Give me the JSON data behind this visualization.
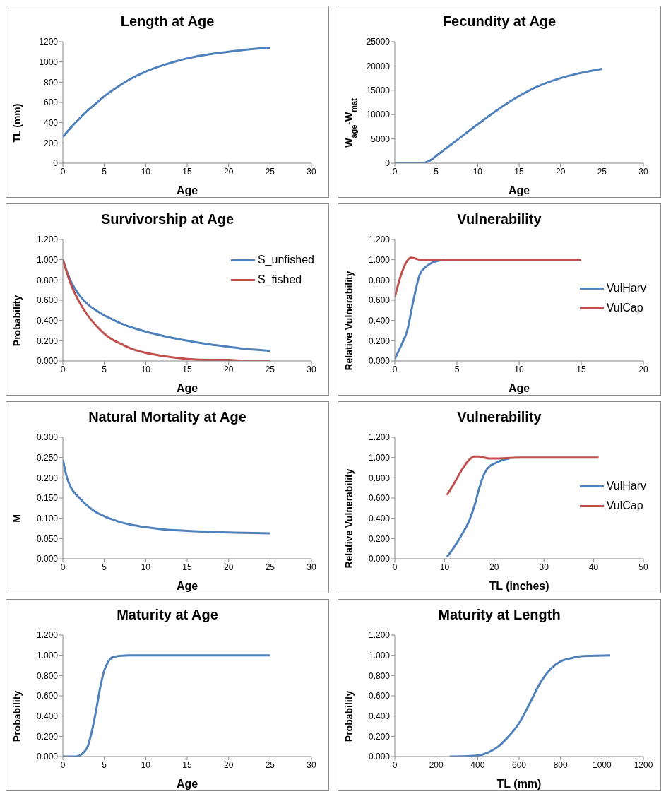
{
  "chart_data": [
    {
      "type": "line",
      "title": "Length at Age",
      "xlabel": "Age",
      "ylabel": "TL (mm)",
      "xlim": [
        0,
        30
      ],
      "xticks": [
        0,
        5,
        10,
        15,
        20,
        25,
        30
      ],
      "ylim": [
        0,
        1200
      ],
      "yticks": [
        0,
        200,
        400,
        600,
        800,
        1000,
        1200
      ],
      "grid": false,
      "legend": false,
      "series": [
        {
          "color": "#4f81bd",
          "x": [
            0,
            1,
            2,
            3,
            4,
            5,
            6,
            7,
            8,
            10,
            12,
            15,
            18,
            20,
            22,
            25
          ],
          "values": [
            260,
            355,
            440,
            520,
            590,
            660,
            720,
            775,
            825,
            905,
            965,
            1035,
            1080,
            1100,
            1120,
            1140
          ]
        }
      ]
    },
    {
      "type": "line",
      "title": "Fecundity at Age",
      "xlabel": "Age",
      "ylabel": "W$_{age}$-W$_{mat}$",
      "xlim": [
        0,
        30
      ],
      "xticks": [
        0,
        5,
        10,
        15,
        20,
        25,
        30
      ],
      "ylim": [
        0,
        25000
      ],
      "yticks": [
        0,
        5000,
        10000,
        15000,
        20000,
        25000
      ],
      "grid": false,
      "legend": false,
      "series": [
        {
          "color": "#4f81bd",
          "x": [
            0,
            3,
            3.8,
            4.3,
            5,
            6,
            7,
            8,
            10,
            12,
            14,
            15,
            17,
            20,
            22,
            25
          ],
          "values": [
            0,
            0,
            200,
            600,
            1500,
            2800,
            4100,
            5400,
            8000,
            10500,
            12800,
            13800,
            15600,
            17500,
            18400,
            19400
          ]
        }
      ]
    },
    {
      "type": "line",
      "title": "Survivorship at Age",
      "xlabel": "Age",
      "ylabel": "Probability",
      "xlim": [
        0,
        30
      ],
      "xticks": [
        0,
        5,
        10,
        15,
        20,
        25,
        30
      ],
      "ylim": [
        0,
        1.2
      ],
      "yticks": [
        {
          "value": 0,
          "label": "0.000"
        },
        {
          "value": 0.2,
          "label": "0.200"
        },
        {
          "value": 0.4,
          "label": "0.400"
        },
        {
          "value": 0.6,
          "label": "0.600"
        },
        {
          "value": 0.8,
          "label": "0.800"
        },
        {
          "value": 1,
          "label": "1.000"
        },
        {
          "value": 1.2,
          "label": "1.200"
        }
      ],
      "grid": false,
      "legend": "top right",
      "series": [
        {
          "name": "S_unfished",
          "color": "#4f81bd",
          "x": [
            0,
            1,
            2,
            3,
            4,
            5,
            6,
            7,
            8,
            10,
            12,
            15,
            18,
            20,
            22,
            25
          ],
          "values": [
            1,
            0.78,
            0.65,
            0.56,
            0.5,
            0.45,
            0.41,
            0.37,
            0.34,
            0.29,
            0.25,
            0.2,
            0.16,
            0.14,
            0.12,
            0.1
          ]
        },
        {
          "name": "S_fished",
          "color": "#c0504d",
          "x": [
            0,
            1,
            2,
            3,
            4,
            5,
            6,
            7,
            8,
            10,
            12,
            15,
            18,
            20,
            22,
            25
          ],
          "values": [
            1,
            0.75,
            0.58,
            0.45,
            0.35,
            0.27,
            0.21,
            0.17,
            0.13,
            0.08,
            0.05,
            0.02,
            0.01,
            0.01,
            0,
            0
          ]
        }
      ]
    },
    {
      "type": "line",
      "title": "Vulnerability",
      "xlabel": "Age",
      "ylabel": "Relative Vulnerability",
      "xlim": [
        0,
        20
      ],
      "xticks": [
        0,
        5,
        10,
        15,
        20
      ],
      "ylim": [
        0,
        1.2
      ],
      "yticks": [
        {
          "value": 0,
          "label": "0.000"
        },
        {
          "value": 0.2,
          "label": "0.200"
        },
        {
          "value": 0.4,
          "label": "0.400"
        },
        {
          "value": 0.6,
          "label": "0.600"
        },
        {
          "value": 0.8,
          "label": "0.800"
        },
        {
          "value": 1,
          "label": "1.000"
        },
        {
          "value": 1.2,
          "label": "1.200"
        }
      ],
      "grid": false,
      "legend": "right",
      "series": [
        {
          "name": "VulHarv",
          "color": "#4f81bd",
          "x": [
            0,
            0.5,
            1,
            1.5,
            2,
            2.5,
            3,
            3.5,
            4
          ],
          "values": [
            0.02,
            0.15,
            0.3,
            0.6,
            0.85,
            0.93,
            0.97,
            0.99,
            1
          ]
        },
        {
          "name": "VulCap",
          "color": "#c0504d",
          "x": [
            0,
            0.5,
            1,
            1.3,
            1.7,
            2,
            3,
            5,
            10,
            15
          ],
          "values": [
            0.63,
            0.85,
            0.99,
            1.02,
            1.01,
            1,
            1,
            1,
            1,
            1
          ]
        }
      ]
    },
    {
      "type": "line",
      "title": "Natural Mortality at Age",
      "xlabel": "Age",
      "ylabel": "M",
      "xlim": [
        0,
        30
      ],
      "xticks": [
        0,
        5,
        10,
        15,
        20,
        25,
        30
      ],
      "ylim": [
        0,
        0.3
      ],
      "yticks": [
        {
          "value": 0,
          "label": "0.000"
        },
        {
          "value": 0.05,
          "label": "0.050"
        },
        {
          "value": 0.1,
          "label": "0.100"
        },
        {
          "value": 0.15,
          "label": "0.150"
        },
        {
          "value": 0.2,
          "label": "0.200"
        },
        {
          "value": 0.25,
          "label": "0.250"
        },
        {
          "value": 0.3,
          "label": "0.300"
        }
      ],
      "grid": false,
      "legend": false,
      "series": [
        {
          "color": "#4f81bd",
          "x": [
            0,
            0.5,
            1,
            2,
            3,
            4,
            5,
            6,
            7,
            8,
            10,
            12,
            15,
            18,
            20,
            22,
            25
          ],
          "values": [
            0.245,
            0.2,
            0.175,
            0.15,
            0.13,
            0.115,
            0.105,
            0.097,
            0.09,
            0.085,
            0.078,
            0.073,
            0.069,
            0.066,
            0.065,
            0.064,
            0.063
          ]
        }
      ]
    },
    {
      "type": "line",
      "title": "Vulnerability",
      "xlabel": "TL (inches)",
      "ylabel": "Relative Vulnerability",
      "xlim": [
        0,
        50
      ],
      "xticks": [
        0,
        10,
        20,
        30,
        40,
        50
      ],
      "ylim": [
        0,
        1.2
      ],
      "yticks": [
        {
          "value": 0,
          "label": "0.000"
        },
        {
          "value": 0.2,
          "label": "0.200"
        },
        {
          "value": 0.4,
          "label": "0.400"
        },
        {
          "value": 0.6,
          "label": "0.600"
        },
        {
          "value": 0.8,
          "label": "0.800"
        },
        {
          "value": 1,
          "label": "1.000"
        },
        {
          "value": 1.2,
          "label": "1.200"
        }
      ],
      "grid": false,
      "legend": "right",
      "series": [
        {
          "name": "VulHarv",
          "color": "#4f81bd",
          "x": [
            10.5,
            12,
            13.5,
            15,
            16,
            17,
            18,
            19,
            20,
            22,
            23
          ],
          "values": [
            0.02,
            0.12,
            0.24,
            0.38,
            0.52,
            0.7,
            0.84,
            0.91,
            0.94,
            0.98,
            0.99
          ]
        },
        {
          "name": "VulCap",
          "color": "#c0504d",
          "x": [
            10.5,
            12,
            13.5,
            15,
            16,
            17,
            18,
            19,
            20,
            25,
            41
          ],
          "values": [
            0.63,
            0.75,
            0.88,
            0.98,
            1.01,
            1.01,
            1,
            0.99,
            0.99,
            1,
            1
          ]
        }
      ]
    },
    {
      "type": "line",
      "title": "Maturity at Age",
      "xlabel": "Age",
      "ylabel": "Probability",
      "xlim": [
        0,
        30
      ],
      "xticks": [
        0,
        5,
        10,
        15,
        20,
        25,
        30
      ],
      "ylim": [
        0,
        1.2
      ],
      "yticks": [
        {
          "value": 0,
          "label": "0.000"
        },
        {
          "value": 0.2,
          "label": "0.200"
        },
        {
          "value": 0.4,
          "label": "0.400"
        },
        {
          "value": 0.6,
          "label": "0.600"
        },
        {
          "value": 0.8,
          "label": "0.800"
        },
        {
          "value": 1,
          "label": "1.000"
        },
        {
          "value": 1.2,
          "label": "1.200"
        }
      ],
      "grid": false,
      "legend": false,
      "series": [
        {
          "color": "#4f81bd",
          "x": [
            0,
            1.5,
            2,
            2.5,
            3,
            3.5,
            4,
            4.5,
            5,
            5.5,
            6,
            7,
            8,
            10,
            25
          ],
          "values": [
            0,
            0,
            0.01,
            0.04,
            0.1,
            0.25,
            0.45,
            0.68,
            0.85,
            0.94,
            0.98,
            0.995,
            1,
            1,
            1
          ]
        }
      ]
    },
    {
      "type": "line",
      "title": "Maturity at Length",
      "xlabel": "TL (mm)",
      "ylabel": "Probability",
      "xlim": [
        0,
        1200
      ],
      "xticks": [
        0,
        200,
        400,
        600,
        800,
        1000,
        1200
      ],
      "ylim": [
        0,
        1.2
      ],
      "yticks": [
        {
          "value": 0,
          "label": "0.000"
        },
        {
          "value": 0.2,
          "label": "0.200"
        },
        {
          "value": 0.4,
          "label": "0.400"
        },
        {
          "value": 0.6,
          "label": "0.600"
        },
        {
          "value": 0.8,
          "label": "0.800"
        },
        {
          "value": 1,
          "label": "1.000"
        },
        {
          "value": 1.2,
          "label": "1.200"
        }
      ],
      "grid": false,
      "legend": false,
      "series": [
        {
          "color": "#4f81bd",
          "x": [
            265,
            350,
            400,
            450,
            500,
            550,
            600,
            650,
            700,
            750,
            800,
            850,
            900,
            950,
            1040
          ],
          "values": [
            0,
            0.003,
            0.01,
            0.04,
            0.1,
            0.2,
            0.33,
            0.52,
            0.72,
            0.86,
            0.94,
            0.97,
            0.99,
            0.995,
            1
          ]
        }
      ]
    }
  ]
}
